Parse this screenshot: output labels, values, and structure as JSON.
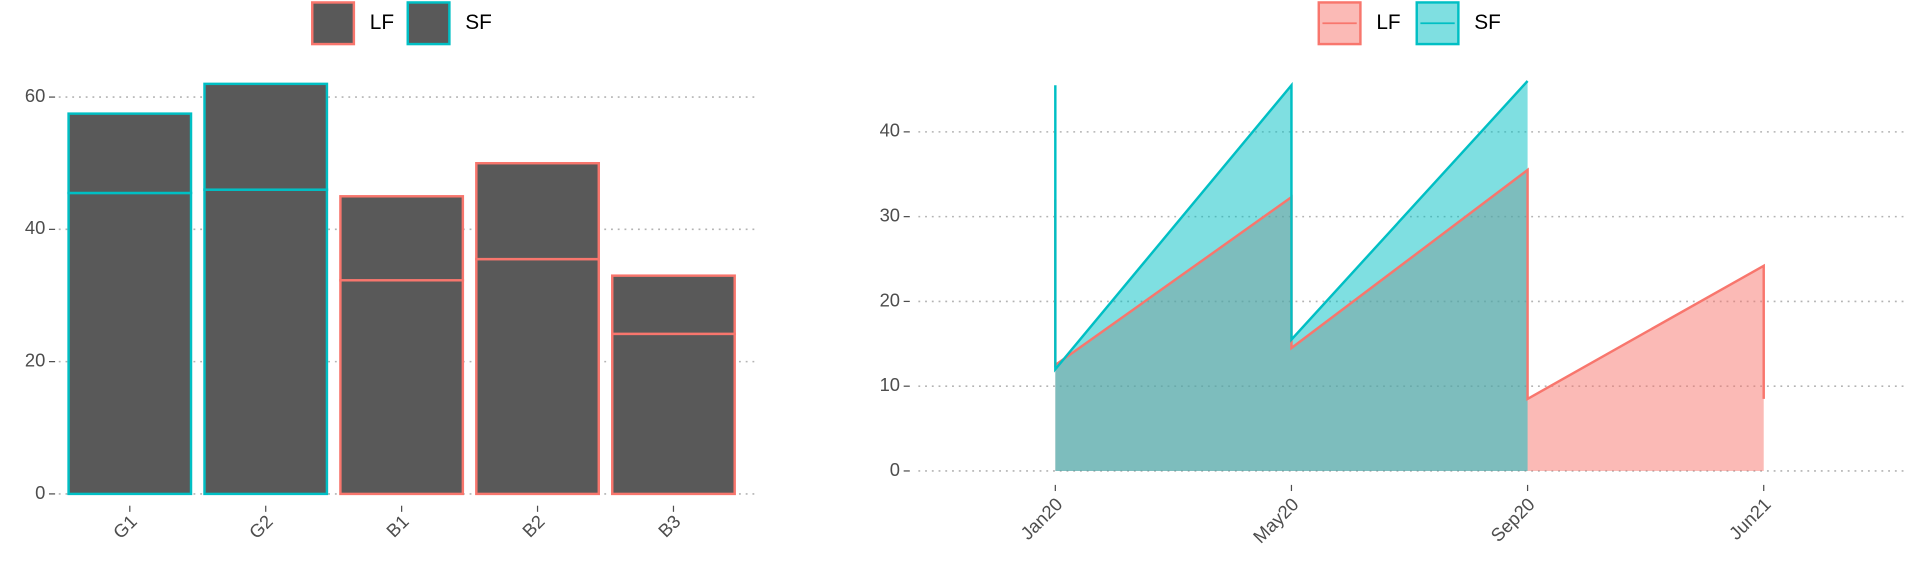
{
  "chart_data": [
    {
      "type": "stacked-bar",
      "categories": [
        "G1",
        "G2",
        "B1",
        "B2",
        "B3"
      ],
      "segments": [
        [
          45.5,
          12
        ],
        [
          46,
          16
        ],
        [
          32.3,
          12.7
        ],
        [
          35.5,
          14.5
        ],
        [
          24.2,
          8.8
        ]
      ],
      "outline_series": [
        1,
        1,
        0,
        0,
        0
      ],
      "bar_fill": "#595959",
      "legend": [
        {
          "name": "LF",
          "color": "#f8766d"
        },
        {
          "name": "SF",
          "color": "#00bfc4"
        }
      ],
      "ylim": [
        -1.6,
        63.2
      ],
      "yticks": [
        0,
        20,
        40,
        60
      ],
      "grid": true
    },
    {
      "type": "area",
      "series": [
        {
          "name": "LF",
          "color": "#f8766d",
          "x": [
            1,
            1,
            2,
            2,
            3,
            3,
            4,
            4
          ],
          "values": [
            32,
            12.5,
            32.3,
            14.5,
            35.5,
            8.5,
            24.2,
            8.5
          ]
        },
        {
          "name": "SF",
          "color": "#00bfc4",
          "x": [
            1,
            1,
            2,
            2,
            3
          ],
          "values": [
            45.5,
            12,
            45.5,
            15.5,
            46
          ]
        }
      ],
      "xlim": [
        0.42,
        4.61
      ],
      "xticks": [
        {
          "value": 1,
          "label": "Jan20"
        },
        {
          "value": 2,
          "label": "May20"
        },
        {
          "value": 3,
          "label": "Sep20"
        },
        {
          "value": 4,
          "label": "Jun21"
        }
      ],
      "ylim": [
        -1.5,
        46.6
      ],
      "yticks": [
        0,
        10,
        20,
        30,
        40
      ],
      "grid": true
    }
  ]
}
